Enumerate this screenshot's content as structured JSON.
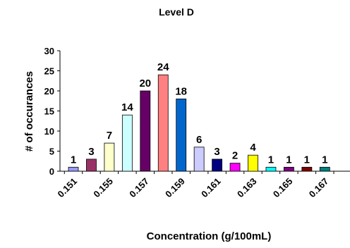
{
  "chart_data": {
    "type": "bar",
    "title": "Level D",
    "xlabel": "Concentration (g/100mL)",
    "ylabel": "# of occurances",
    "ylim": [
      0,
      30
    ],
    "yticks": [
      0,
      5,
      10,
      15,
      20,
      25,
      30
    ],
    "grid": false,
    "legend": "none",
    "xtick_labels": [
      "0.151",
      "0.155",
      "0.157",
      "0.159",
      "0.161",
      "0.163",
      "0.165",
      "0.167"
    ],
    "values": [
      1,
      3,
      7,
      14,
      20,
      24,
      18,
      6,
      3,
      2,
      4,
      1,
      1,
      1,
      1
    ],
    "colors": [
      "#9999ff",
      "#993366",
      "#ffffcc",
      "#ccffff",
      "#660066",
      "#ff8080",
      "#0066cc",
      "#ccccff",
      "#000080",
      "#ff00ff",
      "#ffff00",
      "#00ffff",
      "#800080",
      "#800000",
      "#008080"
    ]
  }
}
